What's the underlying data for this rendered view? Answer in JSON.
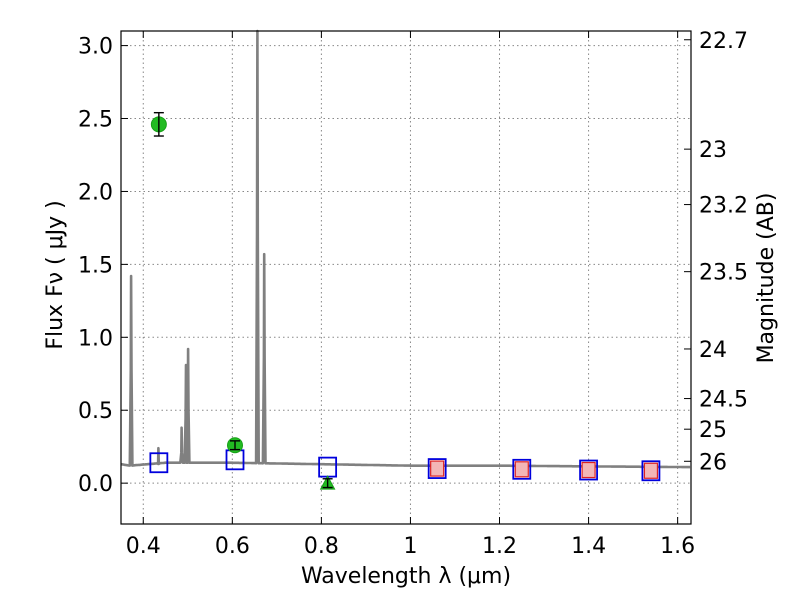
{
  "chart_data": {
    "type": "scatter",
    "title": "",
    "grid": true,
    "xlabel": "Wavelength  λ (μm)",
    "ylabel": "Flux  Fν  ( μJy )",
    "y2label": "Magnitude (AB)",
    "xlim": [
      0.35,
      1.63
    ],
    "ylim": [
      -0.28,
      3.1
    ],
    "xticks": [
      {
        "value": 0.4,
        "label": "0.4"
      },
      {
        "value": 0.6,
        "label": "0.6"
      },
      {
        "value": 0.8,
        "label": "0.8"
      },
      {
        "value": 1.0,
        "label": "1"
      },
      {
        "value": 1.2,
        "label": "1.2"
      },
      {
        "value": 1.4,
        "label": "1.4"
      },
      {
        "value": 1.6,
        "label": "1.6"
      }
    ],
    "yticks": [
      {
        "value": 0.0,
        "label": "0.0"
      },
      {
        "value": 0.5,
        "label": "0.5"
      },
      {
        "value": 1.0,
        "label": "1.0"
      },
      {
        "value": 1.5,
        "label": "1.5"
      },
      {
        "value": 2.0,
        "label": "2.0"
      },
      {
        "value": 2.5,
        "label": "2.5"
      },
      {
        "value": 3.0,
        "label": "3.0"
      }
    ],
    "mag_ticks": [
      {
        "flux": 3.04,
        "label": "22.7"
      },
      {
        "flux": 2.29,
        "label": "23"
      },
      {
        "flux": 1.91,
        "label": "23.2"
      },
      {
        "flux": 1.45,
        "label": "23.5"
      },
      {
        "flux": 0.92,
        "label": "24"
      },
      {
        "flux": 0.58,
        "label": "24.5"
      },
      {
        "flux": 0.37,
        "label": "25"
      },
      {
        "flux": 0.15,
        "label": "26"
      }
    ],
    "colors": {
      "model": "#808080",
      "photometry": "#22bb22",
      "model_band": "#0000dd",
      "model_band_inner": "#dd2222",
      "grid": "#888888"
    },
    "model_spectrum": {
      "continuum": [
        [
          0.35,
          0.13
        ],
        [
          0.37,
          0.12
        ],
        [
          0.45,
          0.14
        ],
        [
          0.6,
          0.14
        ],
        [
          0.8,
          0.13
        ],
        [
          1.0,
          0.12
        ],
        [
          1.2,
          0.12
        ],
        [
          1.4,
          0.115
        ],
        [
          1.63,
          0.11
        ]
      ],
      "lines": [
        {
          "x": 0.3727,
          "peak": 1.42
        },
        {
          "x": 0.434,
          "peak": 0.24
        },
        {
          "x": 0.4861,
          "peak": 0.38
        },
        {
          "x": 0.4959,
          "peak": 0.81
        },
        {
          "x": 0.5007,
          "peak": 0.92
        },
        {
          "x": 0.6563,
          "peak": 3.1
        },
        {
          "x": 0.6716,
          "peak": 1.57
        }
      ]
    },
    "photometry": [
      {
        "x": 0.435,
        "y": 2.46,
        "err": 0.08,
        "marker": "circle"
      },
      {
        "x": 0.606,
        "y": 0.26,
        "err": 0.03,
        "marker": "circle"
      },
      {
        "x": 0.814,
        "y": 0.0,
        "err": 0.03,
        "marker": "triangle"
      }
    ],
    "model_bands": [
      {
        "x": 0.435,
        "y": 0.14,
        "inner": false
      },
      {
        "x": 0.606,
        "y": 0.16,
        "inner": false
      },
      {
        "x": 0.814,
        "y": 0.11,
        "inner": false
      },
      {
        "x": 1.06,
        "y": 0.1,
        "inner": true
      },
      {
        "x": 1.25,
        "y": 0.095,
        "inner": true
      },
      {
        "x": 1.4,
        "y": 0.09,
        "inner": true
      },
      {
        "x": 1.54,
        "y": 0.085,
        "inner": true
      }
    ]
  }
}
